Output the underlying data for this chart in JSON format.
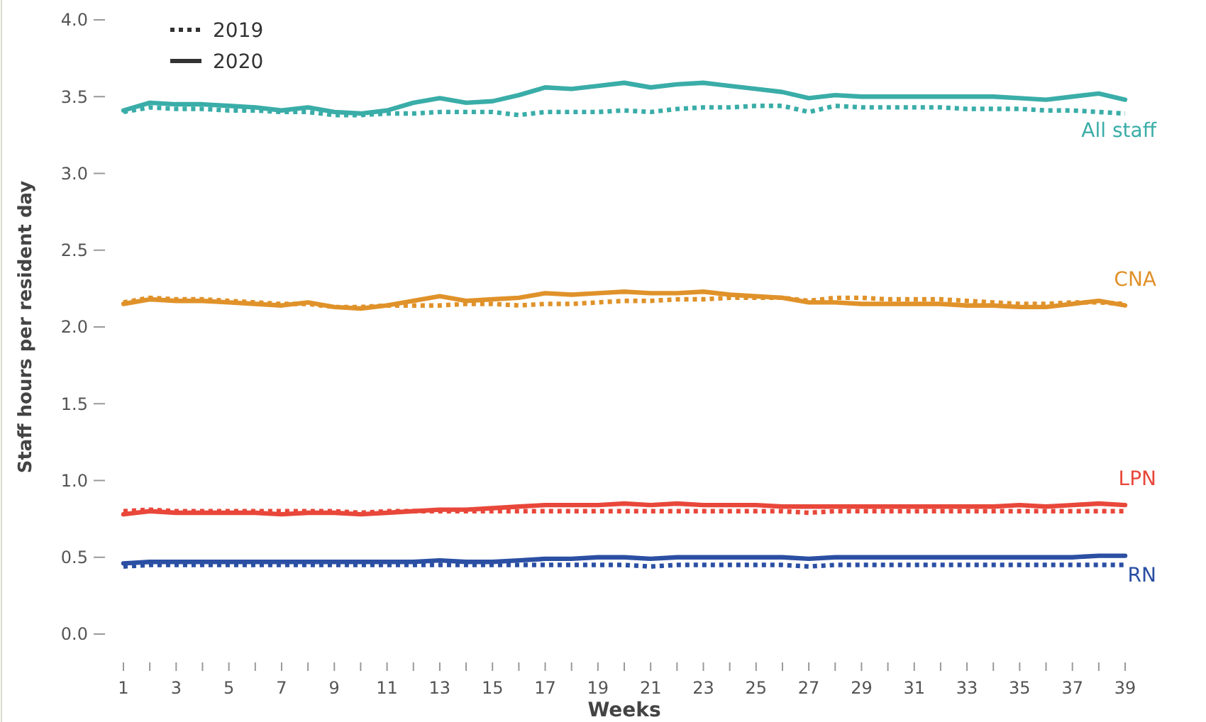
{
  "chart_data": {
    "type": "line",
    "xlabel": "Weeks",
    "ylabel": "Staff hours per resident day",
    "x": [
      1,
      2,
      3,
      4,
      5,
      6,
      7,
      8,
      9,
      10,
      11,
      12,
      13,
      14,
      15,
      16,
      17,
      18,
      19,
      20,
      21,
      22,
      23,
      24,
      25,
      26,
      27,
      28,
      29,
      30,
      31,
      32,
      33,
      34,
      35,
      36,
      37,
      38,
      39
    ],
    "xlim": [
      1,
      39
    ],
    "xticks": [
      1,
      3,
      5,
      7,
      9,
      11,
      13,
      15,
      17,
      19,
      21,
      23,
      25,
      27,
      29,
      31,
      33,
      35,
      37,
      39
    ],
    "ylim": [
      0,
      4
    ],
    "yticks": [
      {
        "value": 0,
        "label": "0.0"
      },
      {
        "value": 0.5,
        "label": "0.5"
      },
      {
        "value": 1,
        "label": "1.0"
      },
      {
        "value": 1.5,
        "label": "1.5"
      },
      {
        "value": 2,
        "label": "2.0"
      },
      {
        "value": 2.5,
        "label": "2.5"
      },
      {
        "value": 3,
        "label": "3.0"
      },
      {
        "value": 3.5,
        "label": "3.5"
      },
      {
        "value": 4,
        "label": "4.0"
      }
    ],
    "grid": false,
    "legend": "right",
    "marker": "none",
    "series": [
      {
        "color": "#3aada8",
        "line_style": "dotted",
        "values": [
          3.4,
          3.43,
          3.42,
          3.42,
          3.41,
          3.41,
          3.4,
          3.4,
          3.38,
          3.38,
          3.39,
          3.39,
          3.4,
          3.4,
          3.4,
          3.38,
          3.4,
          3.4,
          3.4,
          3.41,
          3.4,
          3.42,
          3.43,
          3.43,
          3.44,
          3.44,
          3.4,
          3.44,
          3.43,
          3.43,
          3.43,
          3.43,
          3.42,
          3.42,
          3.42,
          3.41,
          3.41,
          3.4,
          3.39
        ]
      },
      {
        "name": "All staff",
        "color": "#3aada8",
        "line_style": "solid",
        "values": [
          3.41,
          3.46,
          3.45,
          3.45,
          3.44,
          3.43,
          3.41,
          3.43,
          3.4,
          3.39,
          3.41,
          3.46,
          3.49,
          3.46,
          3.47,
          3.51,
          3.56,
          3.55,
          3.57,
          3.59,
          3.56,
          3.58,
          3.59,
          3.57,
          3.55,
          3.53,
          3.49,
          3.51,
          3.5,
          3.5,
          3.5,
          3.5,
          3.5,
          3.5,
          3.49,
          3.48,
          3.5,
          3.52,
          3.48
        ]
      },
      {
        "color": "#e0922a",
        "line_style": "dotted",
        "values": [
          2.16,
          2.19,
          2.18,
          2.18,
          2.17,
          2.16,
          2.15,
          2.15,
          2.13,
          2.13,
          2.14,
          2.14,
          2.14,
          2.15,
          2.15,
          2.14,
          2.15,
          2.15,
          2.16,
          2.17,
          2.17,
          2.18,
          2.18,
          2.19,
          2.19,
          2.19,
          2.17,
          2.19,
          2.19,
          2.18,
          2.18,
          2.18,
          2.17,
          2.16,
          2.15,
          2.15,
          2.16,
          2.16,
          2.15
        ]
      },
      {
        "name": "CNA",
        "color": "#e0922a",
        "line_style": "solid",
        "values": [
          2.15,
          2.18,
          2.17,
          2.17,
          2.16,
          2.15,
          2.14,
          2.16,
          2.13,
          2.12,
          2.14,
          2.17,
          2.2,
          2.17,
          2.18,
          2.19,
          2.22,
          2.21,
          2.22,
          2.23,
          2.22,
          2.22,
          2.23,
          2.21,
          2.2,
          2.19,
          2.16,
          2.16,
          2.15,
          2.15,
          2.15,
          2.15,
          2.14,
          2.14,
          2.13,
          2.13,
          2.15,
          2.17,
          2.14
        ]
      },
      {
        "color": "#e8473a",
        "line_style": "dotted",
        "values": [
          0.8,
          0.81,
          0.8,
          0.8,
          0.8,
          0.8,
          0.8,
          0.8,
          0.8,
          0.79,
          0.8,
          0.8,
          0.8,
          0.8,
          0.8,
          0.8,
          0.8,
          0.8,
          0.8,
          0.8,
          0.8,
          0.8,
          0.8,
          0.8,
          0.8,
          0.8,
          0.79,
          0.8,
          0.8,
          0.8,
          0.8,
          0.8,
          0.8,
          0.8,
          0.8,
          0.8,
          0.8,
          0.8,
          0.8
        ]
      },
      {
        "name": "LPN",
        "color": "#e8473a",
        "line_style": "solid",
        "values": [
          0.78,
          0.8,
          0.79,
          0.79,
          0.79,
          0.79,
          0.78,
          0.79,
          0.79,
          0.78,
          0.79,
          0.8,
          0.81,
          0.81,
          0.82,
          0.83,
          0.84,
          0.84,
          0.84,
          0.85,
          0.84,
          0.85,
          0.84,
          0.84,
          0.84,
          0.83,
          0.83,
          0.83,
          0.83,
          0.83,
          0.83,
          0.83,
          0.83,
          0.83,
          0.84,
          0.83,
          0.84,
          0.85,
          0.84
        ]
      },
      {
        "color": "#2b4fa3",
        "line_style": "dotted",
        "values": [
          0.44,
          0.45,
          0.45,
          0.45,
          0.45,
          0.45,
          0.45,
          0.45,
          0.45,
          0.45,
          0.45,
          0.45,
          0.45,
          0.45,
          0.45,
          0.45,
          0.45,
          0.45,
          0.45,
          0.45,
          0.44,
          0.45,
          0.45,
          0.45,
          0.45,
          0.45,
          0.44,
          0.45,
          0.45,
          0.45,
          0.45,
          0.45,
          0.45,
          0.45,
          0.45,
          0.45,
          0.45,
          0.45,
          0.45
        ]
      },
      {
        "name": "RN",
        "color": "#2b4fa3",
        "line_style": "solid",
        "values": [
          0.46,
          0.47,
          0.47,
          0.47,
          0.47,
          0.47,
          0.47,
          0.47,
          0.47,
          0.47,
          0.47,
          0.47,
          0.48,
          0.47,
          0.47,
          0.48,
          0.49,
          0.49,
          0.5,
          0.5,
          0.49,
          0.5,
          0.5,
          0.5,
          0.5,
          0.5,
          0.49,
          0.5,
          0.5,
          0.5,
          0.5,
          0.5,
          0.5,
          0.5,
          0.5,
          0.5,
          0.5,
          0.51,
          0.51
        ]
      }
    ],
    "annotations": [
      "2019",
      "2020"
    ]
  }
}
